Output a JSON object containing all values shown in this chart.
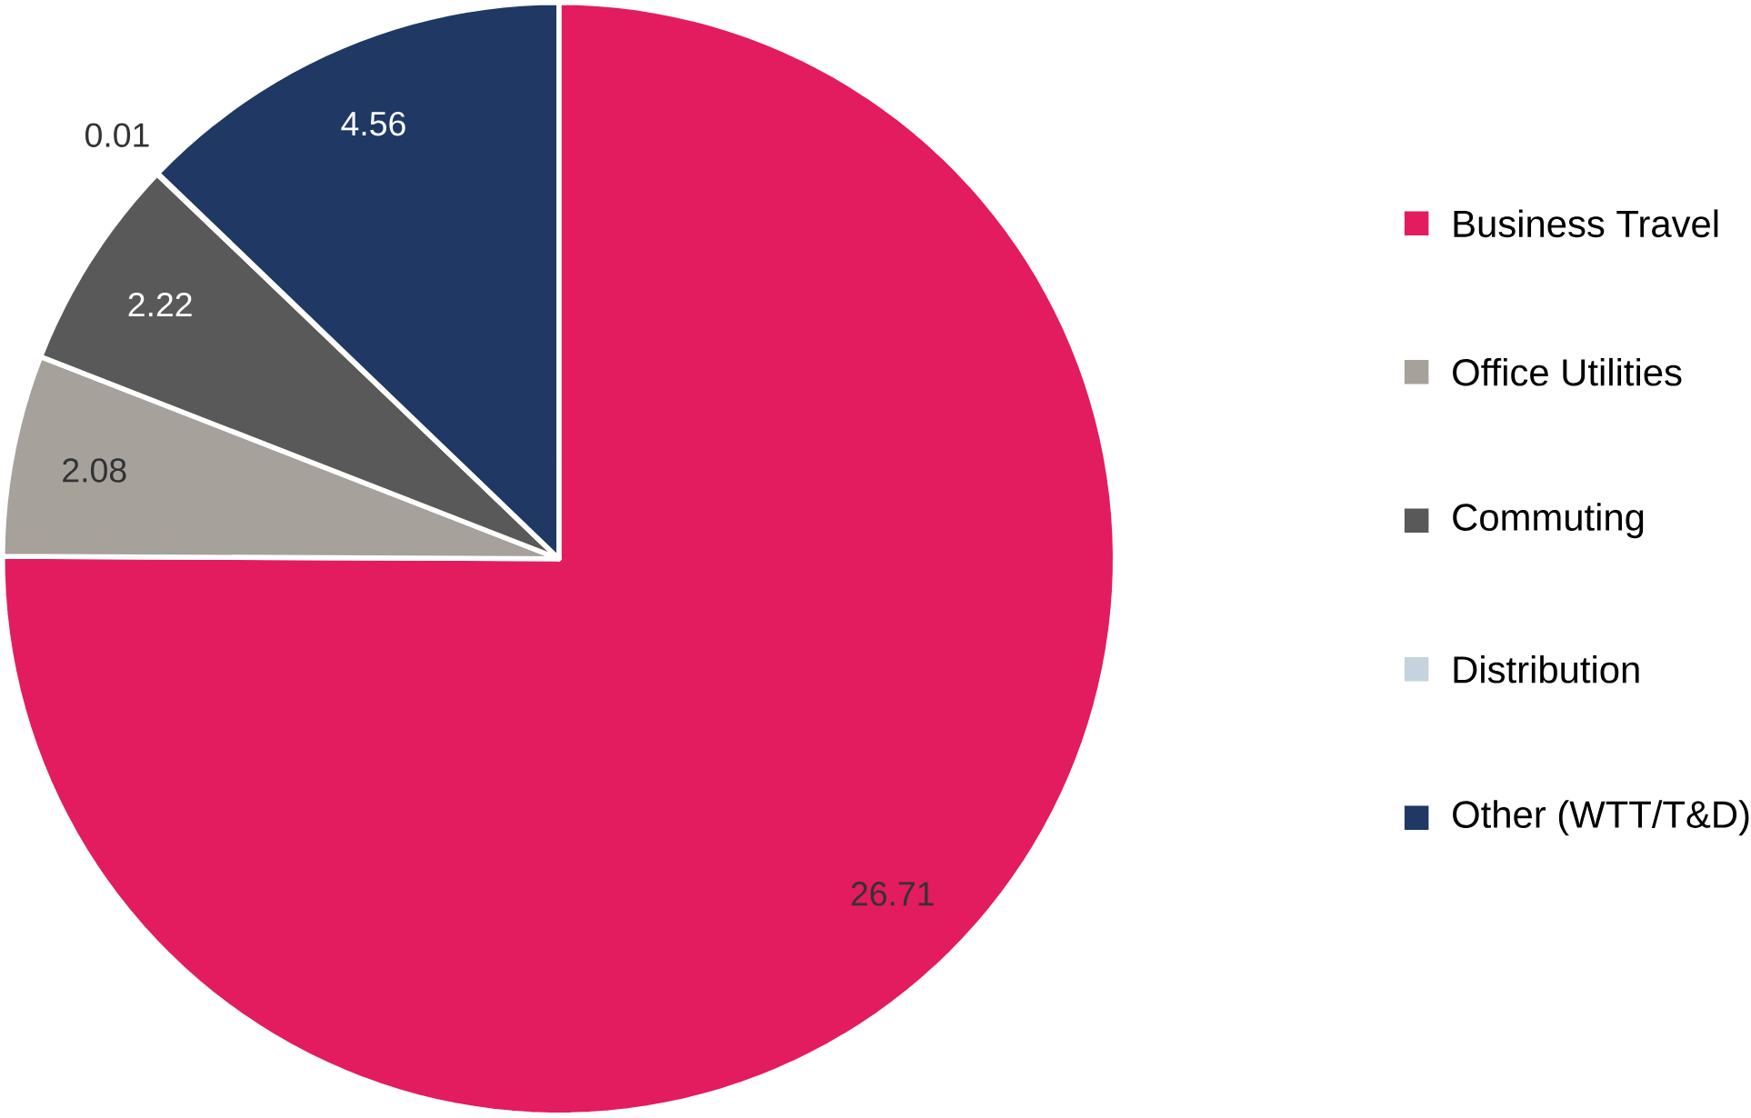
{
  "chart_data": {
    "type": "pie",
    "categories": [
      "Business Travel",
      "Office Utilities",
      "Commuting",
      "Distribution",
      "Other (WTT/T&D)"
    ],
    "values": [
      26.71,
      2.08,
      2.22,
      0.01,
      4.56
    ],
    "colors": [
      "#e31b5f",
      "#a6a19b",
      "#595959",
      "#c5d3dc",
      "#1f3864"
    ],
    "data_labels": true,
    "legend": "right"
  }
}
